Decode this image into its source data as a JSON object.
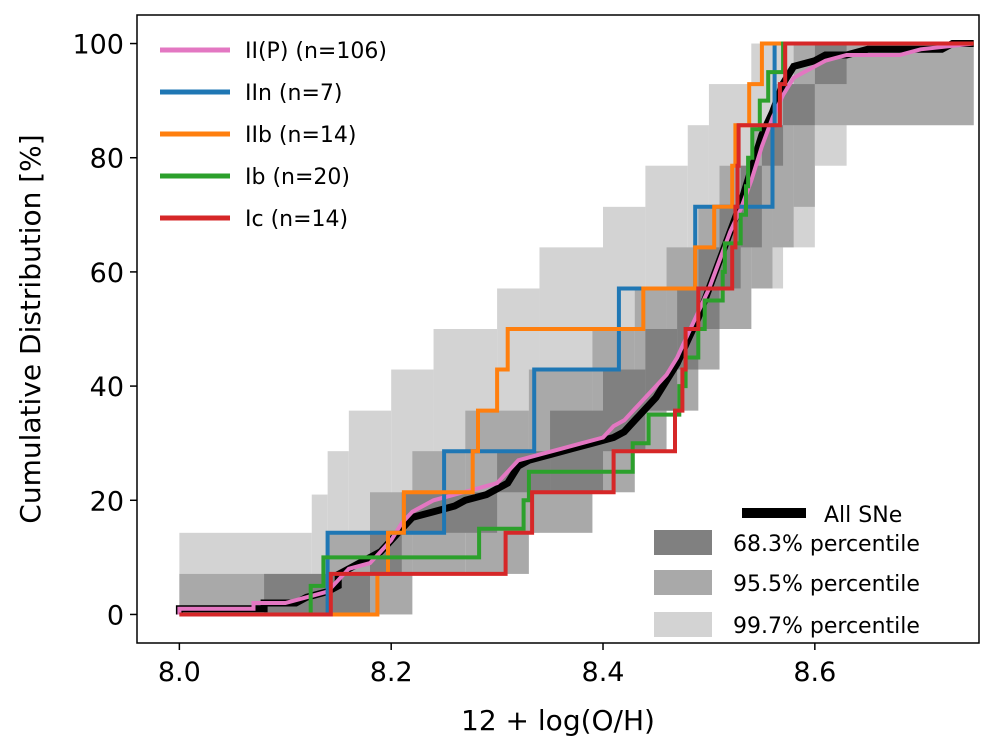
{
  "chart_data": {
    "type": "line",
    "title": "",
    "xlabel": "12 + log(O/H)",
    "ylabel": "Cumulative Distribution [%]",
    "xlim": [
      7.96,
      8.755
    ],
    "ylim": [
      -5,
      105
    ],
    "xticks": [
      8.0,
      8.2,
      8.4,
      8.6
    ],
    "xtick_labels": [
      "8.0",
      "8.2",
      "8.4",
      "8.6"
    ],
    "yticks": [
      0,
      20,
      40,
      60,
      80,
      100
    ],
    "ytick_labels": [
      "0",
      "20",
      "40",
      "60",
      "80",
      "100"
    ],
    "grid": false,
    "legend_upper": {
      "placement": "top-left",
      "entries": [
        {
          "label": "II(P) (n=106)",
          "color": "#e377c2"
        },
        {
          "label": "IIn (n=7)",
          "color": "#1f77b4"
        },
        {
          "label": "IIb (n=14)",
          "color": "#ff7f0e"
        },
        {
          "label": "Ib (n=20)",
          "color": "#2ca02c"
        },
        {
          "label": "Ic (n=14)",
          "color": "#d62728"
        }
      ]
    },
    "legend_lower": {
      "placement": "bottom-right",
      "entries": [
        {
          "label": "All SNe",
          "color": "#000000"
        },
        {
          "label": "68.3% percentile",
          "color": "#808080"
        },
        {
          "label": "95.5% percentile",
          "color": "#a9a9a9"
        },
        {
          "label": "99.7% percentile",
          "color": "#d3d3d3"
        }
      ]
    },
    "bands": [
      {
        "name": "99.7% percentile",
        "color": "#d3d3d3",
        "steps": [
          [
            8.0,
            0,
            14.3
          ],
          [
            8.07,
            0,
            14.3
          ],
          [
            8.125,
            0,
            21
          ],
          [
            8.14,
            0,
            28.6
          ],
          [
            8.16,
            7.1,
            35.7
          ],
          [
            8.2,
            7.1,
            42.9
          ],
          [
            8.24,
            14.3,
            50
          ],
          [
            8.3,
            14.3,
            57.1
          ],
          [
            8.34,
            21.4,
            64.3
          ],
          [
            8.4,
            28.6,
            71.4
          ],
          [
            8.44,
            35.7,
            78.6
          ],
          [
            8.48,
            42.9,
            85.7
          ],
          [
            8.5,
            50,
            92.9
          ],
          [
            8.54,
            57.1,
            100
          ],
          [
            8.57,
            64.3,
            100
          ],
          [
            8.6,
            78.6,
            100
          ],
          [
            8.63,
            85.7,
            100
          ],
          [
            8.65,
            85.7,
            100
          ],
          [
            8.75,
            85.7,
            100
          ]
        ]
      },
      {
        "name": "95.5% percentile",
        "color": "#a9a9a9",
        "steps": [
          [
            8.0,
            0,
            7.1
          ],
          [
            8.14,
            0,
            14.3
          ],
          [
            8.18,
            0,
            21.4
          ],
          [
            8.22,
            7.1,
            28.6
          ],
          [
            8.27,
            7.1,
            35.7
          ],
          [
            8.33,
            14.3,
            42.9
          ],
          [
            8.39,
            21.4,
            50
          ],
          [
            8.43,
            28.6,
            57.1
          ],
          [
            8.46,
            35.7,
            64.3
          ],
          [
            8.49,
            42.9,
            71.4
          ],
          [
            8.51,
            50,
            78.6
          ],
          [
            8.54,
            57.1,
            85.7
          ],
          [
            8.56,
            64.3,
            92.9
          ],
          [
            8.58,
            71.4,
            100
          ],
          [
            8.6,
            85.7,
            100
          ],
          [
            8.75,
            92.9,
            100
          ]
        ]
      },
      {
        "name": "68.3% percentile",
        "color": "#808080",
        "steps": [
          [
            8.08,
            0,
            7.1
          ],
          [
            8.14,
            0,
            7.1
          ],
          [
            8.18,
            7.1,
            14.3
          ],
          [
            8.21,
            14.3,
            21.4
          ],
          [
            8.3,
            21.4,
            28.6
          ],
          [
            8.35,
            21.4,
            35.7
          ],
          [
            8.4,
            28.6,
            42.9
          ],
          [
            8.44,
            35.7,
            50
          ],
          [
            8.47,
            42.9,
            57.1
          ],
          [
            8.49,
            50,
            64.3
          ],
          [
            8.51,
            57.1,
            71.4
          ],
          [
            8.53,
            64.3,
            78.6
          ],
          [
            8.55,
            78.6,
            85.7
          ],
          [
            8.57,
            85.7,
            92.9
          ],
          [
            8.6,
            92.9,
            100
          ],
          [
            8.63,
            100,
            100
          ]
        ]
      }
    ],
    "series": [
      {
        "name": "All SNe",
        "color": "#000000",
        "width": 7,
        "points": [
          [
            8.0,
            0
          ],
          [
            8.0,
            1
          ],
          [
            8.08,
            1
          ],
          [
            8.08,
            2
          ],
          [
            8.11,
            2
          ],
          [
            8.12,
            3
          ],
          [
            8.14,
            4
          ],
          [
            8.15,
            5
          ],
          [
            8.15,
            7
          ],
          [
            8.16,
            8
          ],
          [
            8.17,
            9
          ],
          [
            8.18,
            10
          ],
          [
            8.19,
            11
          ],
          [
            8.2,
            13
          ],
          [
            8.21,
            15
          ],
          [
            8.22,
            17
          ],
          [
            8.24,
            18
          ],
          [
            8.26,
            19
          ],
          [
            8.27,
            20
          ],
          [
            8.29,
            21
          ],
          [
            8.31,
            23
          ],
          [
            8.32,
            26
          ],
          [
            8.33,
            27
          ],
          [
            8.35,
            28
          ],
          [
            8.37,
            29
          ],
          [
            8.39,
            30
          ],
          [
            8.41,
            31
          ],
          [
            8.42,
            32
          ],
          [
            8.43,
            34
          ],
          [
            8.44,
            36
          ],
          [
            8.45,
            38
          ],
          [
            8.46,
            41
          ],
          [
            8.47,
            44
          ],
          [
            8.48,
            48
          ],
          [
            8.49,
            52
          ],
          [
            8.5,
            57
          ],
          [
            8.51,
            62
          ],
          [
            8.52,
            67
          ],
          [
            8.53,
            72
          ],
          [
            8.54,
            78
          ],
          [
            8.55,
            84
          ],
          [
            8.56,
            88
          ],
          [
            8.57,
            93
          ],
          [
            8.58,
            96
          ],
          [
            8.6,
            97
          ],
          [
            8.61,
            98
          ],
          [
            8.63,
            98
          ],
          [
            8.65,
            99
          ],
          [
            8.72,
            99
          ],
          [
            8.73,
            100
          ],
          [
            8.75,
            100
          ]
        ]
      },
      {
        "name": "II(P) (n=106)",
        "color": "#e377c2",
        "width": 4,
        "points": [
          [
            8.0,
            0
          ],
          [
            8.0,
            1
          ],
          [
            8.07,
            1
          ],
          [
            8.07,
            2
          ],
          [
            8.1,
            2
          ],
          [
            8.12,
            3
          ],
          [
            8.14,
            4
          ],
          [
            8.15,
            6
          ],
          [
            8.16,
            8
          ],
          [
            8.18,
            9
          ],
          [
            8.19,
            11
          ],
          [
            8.2,
            13
          ],
          [
            8.21,
            16
          ],
          [
            8.22,
            18
          ],
          [
            8.24,
            20
          ],
          [
            8.26,
            21
          ],
          [
            8.28,
            22
          ],
          [
            8.3,
            23
          ],
          [
            8.31,
            25
          ],
          [
            8.32,
            27
          ],
          [
            8.34,
            28
          ],
          [
            8.36,
            29
          ],
          [
            8.38,
            30
          ],
          [
            8.4,
            31
          ],
          [
            8.41,
            33
          ],
          [
            8.42,
            34
          ],
          [
            8.43,
            36
          ],
          [
            8.44,
            38
          ],
          [
            8.45,
            40
          ],
          [
            8.46,
            42
          ],
          [
            8.47,
            45
          ],
          [
            8.48,
            49
          ],
          [
            8.49,
            53
          ],
          [
            8.5,
            57
          ],
          [
            8.51,
            62
          ],
          [
            8.52,
            67
          ],
          [
            8.53,
            71
          ],
          [
            8.54,
            76
          ],
          [
            8.55,
            82
          ],
          [
            8.56,
            87
          ],
          [
            8.57,
            91
          ],
          [
            8.58,
            94
          ],
          [
            8.6,
            96
          ],
          [
            8.61,
            97
          ],
          [
            8.63,
            98
          ],
          [
            8.68,
            98
          ],
          [
            8.7,
            99
          ],
          [
            8.75,
            100
          ]
        ]
      },
      {
        "name": "IIn (n=7)",
        "color": "#1f77b4",
        "width": 4,
        "points": [
          [
            8.0,
            0
          ],
          [
            8.14,
            0
          ],
          [
            8.14,
            14.3
          ],
          [
            8.25,
            14.3
          ],
          [
            8.25,
            28.6
          ],
          [
            8.335,
            28.6
          ],
          [
            8.335,
            42.9
          ],
          [
            8.415,
            42.9
          ],
          [
            8.415,
            57.1
          ],
          [
            8.487,
            57.1
          ],
          [
            8.487,
            71.4
          ],
          [
            8.56,
            71.4
          ],
          [
            8.56,
            85.7
          ],
          [
            8.562,
            85.7
          ],
          [
            8.562,
            100
          ],
          [
            8.75,
            100
          ]
        ]
      },
      {
        "name": "IIb (n=14)",
        "color": "#ff7f0e",
        "width": 4,
        "points": [
          [
            8.14,
            0
          ],
          [
            8.187,
            0
          ],
          [
            8.187,
            7.1
          ],
          [
            8.197,
            7.1
          ],
          [
            8.197,
            14.3
          ],
          [
            8.212,
            14.3
          ],
          [
            8.212,
            21.4
          ],
          [
            8.277,
            21.4
          ],
          [
            8.277,
            28.6
          ],
          [
            8.282,
            28.6
          ],
          [
            8.282,
            35.7
          ],
          [
            8.3,
            35.7
          ],
          [
            8.3,
            42.9
          ],
          [
            8.31,
            42.9
          ],
          [
            8.31,
            50
          ],
          [
            8.438,
            50
          ],
          [
            8.438,
            57.1
          ],
          [
            8.487,
            57.1
          ],
          [
            8.487,
            64.3
          ],
          [
            8.505,
            64.3
          ],
          [
            8.505,
            71.4
          ],
          [
            8.522,
            71.4
          ],
          [
            8.522,
            78.6
          ],
          [
            8.525,
            78.6
          ],
          [
            8.525,
            85.7
          ],
          [
            8.538,
            85.7
          ],
          [
            8.538,
            92.9
          ],
          [
            8.55,
            92.9
          ],
          [
            8.55,
            100
          ],
          [
            8.75,
            100
          ]
        ]
      },
      {
        "name": "Ib (n=20)",
        "color": "#2ca02c",
        "width": 4,
        "points": [
          [
            8.124,
            0
          ],
          [
            8.124,
            5
          ],
          [
            8.136,
            5
          ],
          [
            8.136,
            10
          ],
          [
            8.283,
            10
          ],
          [
            8.283,
            15
          ],
          [
            8.325,
            15
          ],
          [
            8.325,
            20
          ],
          [
            8.33,
            20
          ],
          [
            8.33,
            25
          ],
          [
            8.428,
            25
          ],
          [
            8.428,
            30
          ],
          [
            8.443,
            30
          ],
          [
            8.443,
            35
          ],
          [
            8.472,
            35
          ],
          [
            8.472,
            40
          ],
          [
            8.478,
            40
          ],
          [
            8.478,
            45
          ],
          [
            8.49,
            45
          ],
          [
            8.49,
            50
          ],
          [
            8.496,
            50
          ],
          [
            8.496,
            55
          ],
          [
            8.513,
            55
          ],
          [
            8.513,
            60
          ],
          [
            8.515,
            60
          ],
          [
            8.515,
            65
          ],
          [
            8.53,
            65
          ],
          [
            8.53,
            70
          ],
          [
            8.535,
            70
          ],
          [
            8.535,
            75
          ],
          [
            8.537,
            75
          ],
          [
            8.537,
            80
          ],
          [
            8.541,
            80
          ],
          [
            8.541,
            85
          ],
          [
            8.548,
            85
          ],
          [
            8.548,
            90
          ],
          [
            8.556,
            90
          ],
          [
            8.556,
            95
          ],
          [
            8.57,
            95
          ],
          [
            8.57,
            100
          ],
          [
            8.75,
            100
          ]
        ]
      },
      {
        "name": "Ic (n=14)",
        "color": "#d62728",
        "width": 4,
        "points": [
          [
            8.0,
            0
          ],
          [
            8.143,
            0
          ],
          [
            8.143,
            7.1
          ],
          [
            8.308,
            7.1
          ],
          [
            8.308,
            14.3
          ],
          [
            8.333,
            14.3
          ],
          [
            8.333,
            21.4
          ],
          [
            8.41,
            21.4
          ],
          [
            8.41,
            28.6
          ],
          [
            8.468,
            28.6
          ],
          [
            8.468,
            35.7
          ],
          [
            8.475,
            35.7
          ],
          [
            8.475,
            42.9
          ],
          [
            8.478,
            42.9
          ],
          [
            8.478,
            50
          ],
          [
            8.49,
            50
          ],
          [
            8.49,
            57.1
          ],
          [
            8.522,
            57.1
          ],
          [
            8.522,
            64.3
          ],
          [
            8.525,
            64.3
          ],
          [
            8.525,
            71.4
          ],
          [
            8.527,
            71.4
          ],
          [
            8.527,
            78.6
          ],
          [
            8.528,
            78.6
          ],
          [
            8.528,
            85.7
          ],
          [
            8.567,
            85.7
          ],
          [
            8.567,
            92.9
          ],
          [
            8.572,
            92.9
          ],
          [
            8.572,
            100
          ],
          [
            8.75,
            100
          ]
        ]
      }
    ]
  }
}
